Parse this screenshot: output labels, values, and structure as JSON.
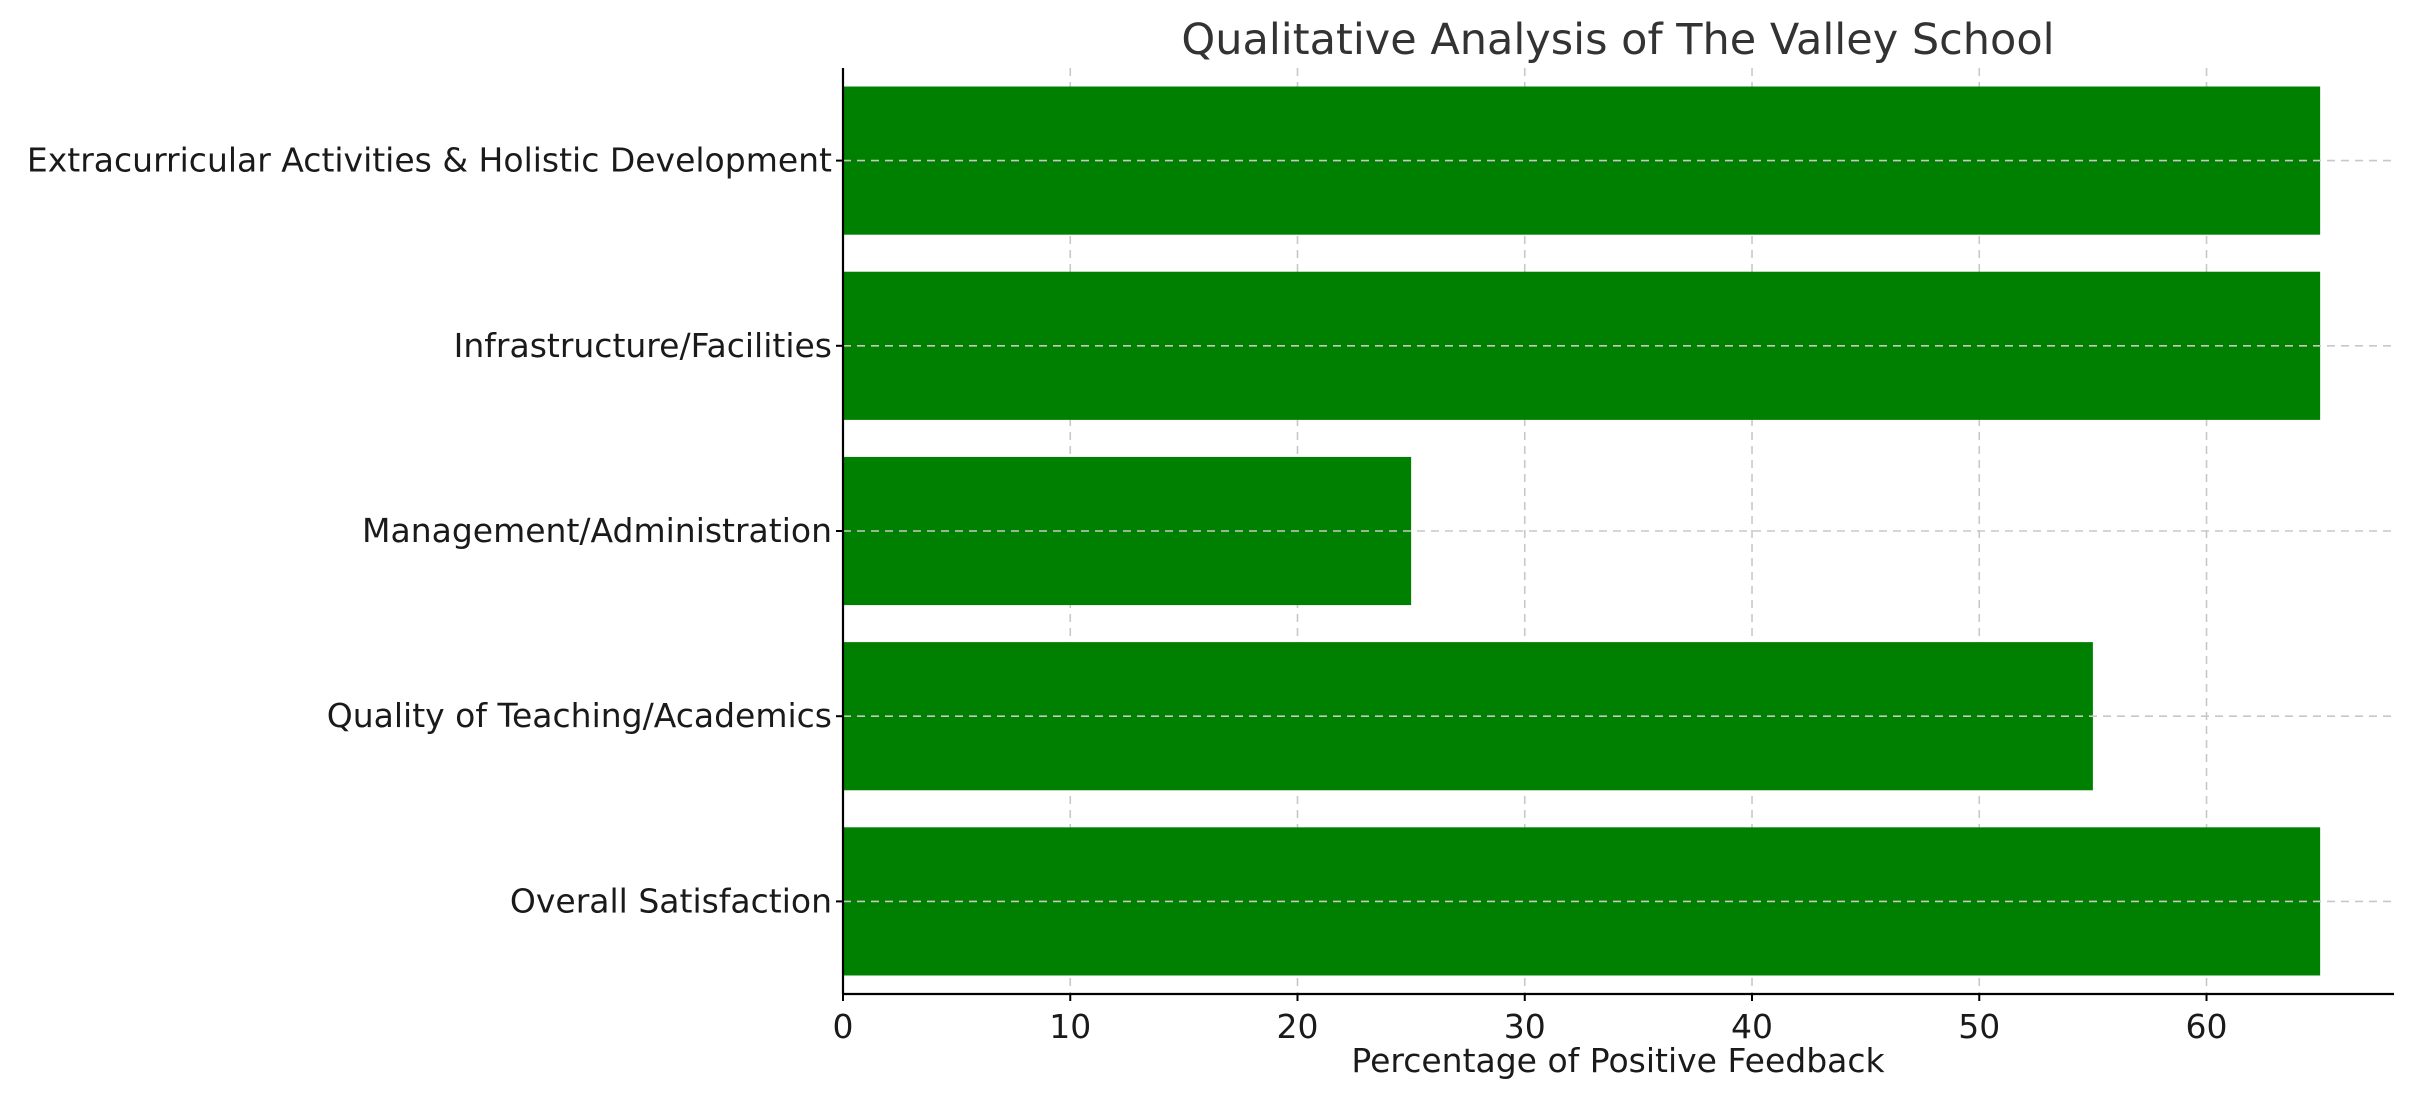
{
  "chart_data": {
    "type": "bar",
    "orientation": "horizontal",
    "title": "Qualitative Analysis of The Valley School",
    "xlabel": "Percentage of Positive Feedback",
    "ylabel": "",
    "categories": [
      "Overall Satisfaction",
      "Quality of Teaching/Academics",
      "Management/Administration",
      "Infrastructure/Facilities",
      "Extracurricular Activities & Holistic Development"
    ],
    "values": [
      65,
      55,
      25,
      65,
      65
    ],
    "xlim": [
      0,
      68.25
    ],
    "xticks": [
      "0",
      "10",
      "20",
      "30",
      "40",
      "50",
      "60"
    ],
    "grid": true,
    "bar_color": "#008000",
    "grid_color": "#c8c8c8"
  }
}
